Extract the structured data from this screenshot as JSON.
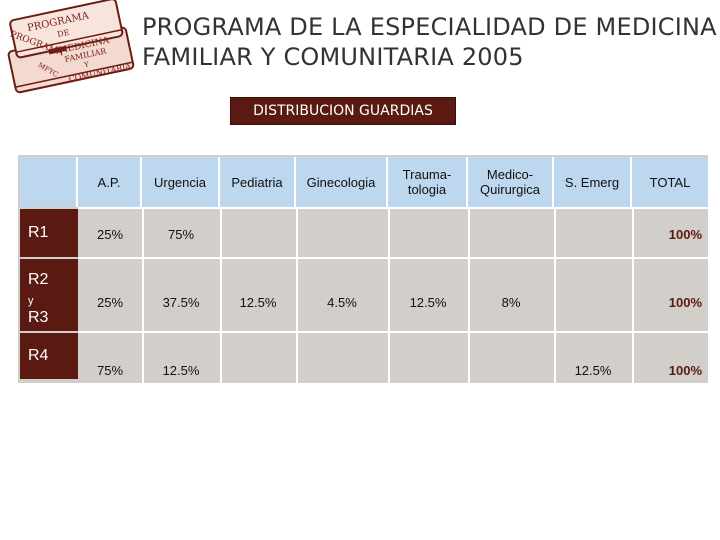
{
  "logo": {
    "icon": "book-stack-icon",
    "text_lines": [
      "PROGRAMA",
      "DE",
      "MEDICINA",
      "FAMILIAR",
      "Y",
      "COMUNITARIA",
      "PROGRAMA",
      "MFYC"
    ]
  },
  "title": "PROGRAMA DE LA ESPECIALIDAD DE MEDICINA FAMILIAR Y COMUNITARIA 2005",
  "subtitle": "DISTRIBUCION GUARDIAS",
  "colors": {
    "accent": "#5a1a12",
    "header_blue": "#bdd7ee",
    "panel_gray": "#d2cfcb"
  },
  "table": {
    "headers": [
      "A.P.",
      "Urgencia",
      "Pediatria",
      "Ginecologia",
      "Trauma-tologia",
      "Medico-Quirurgica",
      "S. Emerg",
      "TOTAL"
    ],
    "rows": [
      {
        "label": "R1",
        "ap": "25%",
        "urgencia": "75%",
        "pediatria": "",
        "ginecologia": "",
        "traumatologia": "",
        "medico_quirurgica": "",
        "s_emerg": "",
        "total": "100%"
      },
      {
        "label_main": "R2",
        "label_small": "y",
        "label_sub": "R3",
        "ap": "25%",
        "urgencia": "37.5%",
        "pediatria": "12.5%",
        "ginecologia": "4.5%",
        "traumatologia": "12.5%",
        "medico_quirurgica": "8%",
        "s_emerg": "",
        "total": "100%"
      },
      {
        "label": "R4",
        "ap": "75%",
        "urgencia": "12.5%",
        "pediatria": "",
        "ginecologia": "",
        "traumatologia": "",
        "medico_quirurgica": "",
        "s_emerg": "12.5%",
        "total": "100%"
      }
    ]
  }
}
